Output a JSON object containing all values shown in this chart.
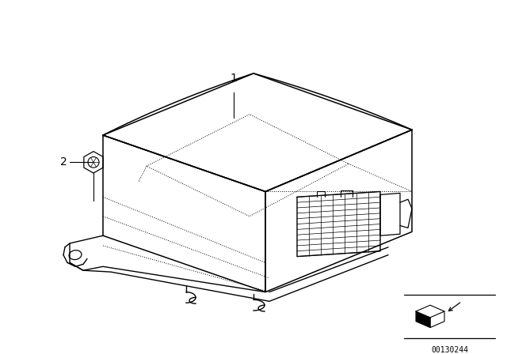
{
  "bg_color": "#ffffff",
  "line_color": "#000000",
  "fig_width": 6.4,
  "fig_height": 4.48,
  "dpi": 100,
  "part_number": "00130244",
  "label_1": "1",
  "label_2": "2",
  "label_fontsize": 10
}
